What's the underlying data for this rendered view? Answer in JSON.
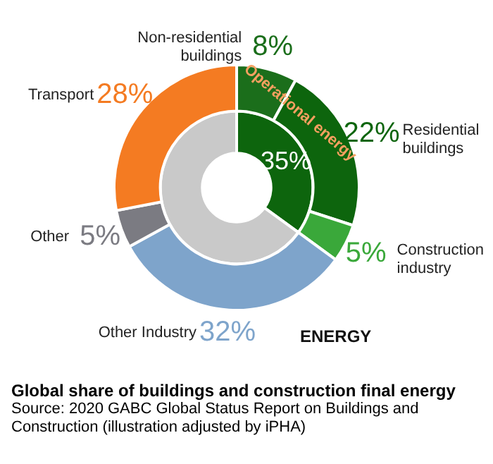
{
  "chart_data": {
    "type": "donut",
    "title": "Global share of buildings and construction final energy",
    "categories": [
      "Non-residential buildings",
      "Residential buildings",
      "Construction industry",
      "Other Industry",
      "Other",
      "Transport"
    ],
    "series": [
      {
        "values": [
          8,
          22,
          5,
          32,
          5,
          28
        ],
        "colors": [
          "#1b6e1b",
          "#0d650d",
          "#3aa83a",
          "#7ea4cb",
          "#7b7b82",
          "#f47b22"
        ],
        "value_labels": [
          "8%",
          "22%",
          "5%",
          "32%",
          "5%",
          "28%"
        ]
      },
      {
        "values": [
          35,
          null,
          null,
          65,
          null,
          null
        ],
        "colors": [
          "#0d650d",
          "#0d650d",
          "#0d650d",
          "#c9c9c9",
          "#c9c9c9",
          "#c9c9c9"
        ],
        "value_labels": [
          "35%",
          null,
          null,
          null,
          null,
          null
        ]
      }
    ],
    "legend": false,
    "annotations": [
      "Operational energy",
      "ENERGY",
      "Source: 2020 GABC Global Status Report on Buildings and Construction (illustration adjusted by iPHA)"
    ]
  }
}
